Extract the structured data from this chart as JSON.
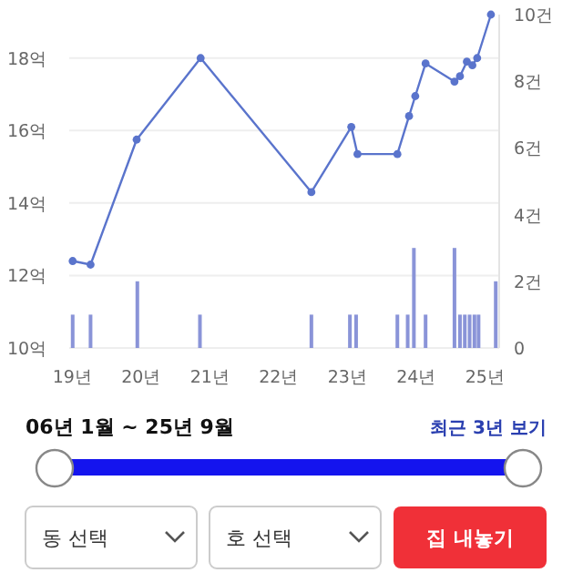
{
  "chart_data": {
    "type": "line",
    "xlim": [
      18.95,
      25.2
    ],
    "xticks": [
      {
        "value": 19,
        "label": "19년"
      },
      {
        "value": 20,
        "label": "20년"
      },
      {
        "value": 21,
        "label": "21년"
      },
      {
        "value": 22,
        "label": "22년"
      },
      {
        "value": 23,
        "label": "23년"
      },
      {
        "value": 24,
        "label": "24년"
      },
      {
        "value": 25,
        "label": "25년"
      }
    ],
    "ylim": [
      10,
      19.2
    ],
    "yticks": [
      {
        "value": 10,
        "label": "10억"
      },
      {
        "value": 12,
        "label": "12억"
      },
      {
        "value": 14,
        "label": "14억"
      },
      {
        "value": 16,
        "label": "16억"
      },
      {
        "value": 18,
        "label": "18억"
      }
    ],
    "y2lim": [
      0,
      10
    ],
    "y2ticks": [
      0,
      {
        "value": 2,
        "label": "2건"
      },
      {
        "value": 4,
        "label": "4건"
      },
      {
        "value": 6,
        "label": "6건"
      },
      {
        "value": 8,
        "label": "8건"
      },
      {
        "value": 10,
        "label": "10건"
      }
    ],
    "grid": "y",
    "marker": "circle",
    "line_style": "solid",
    "series": [
      {
        "color": "#5a74cc",
        "x": [
          19.0,
          19.26,
          19.93,
          20.86,
          22.47,
          23.05,
          23.14,
          23.72,
          23.89,
          23.98,
          24.13,
          24.55,
          24.63,
          24.73,
          24.81,
          24.88,
          25.08
        ],
        "values": [
          12.4,
          12.3,
          15.75,
          18.0,
          14.3,
          16.1,
          15.35,
          15.35,
          16.4,
          16.95,
          17.85,
          17.35,
          17.5,
          17.9,
          17.8,
          18.0,
          19.2
        ]
      },
      {
        "type": "bar",
        "axis": "y2",
        "color": "#8a94d8",
        "x": [
          19.0,
          19.26,
          19.94,
          20.85,
          22.47,
          23.03,
          23.12,
          23.72,
          23.87,
          23.96,
          24.13,
          24.55,
          24.63,
          24.7,
          24.77,
          24.84,
          24.9,
          25.15
        ],
        "values": [
          1,
          1,
          2,
          1,
          1,
          1,
          1,
          1,
          1,
          3,
          1,
          3,
          1,
          1,
          1,
          1,
          1,
          2
        ]
      }
    ],
    "annotations": [
      "06년 1월 ~ 25년 9월",
      "최근 3년 보기",
      "동 선택",
      "호 선택",
      "집 내놓기"
    ]
  }
}
